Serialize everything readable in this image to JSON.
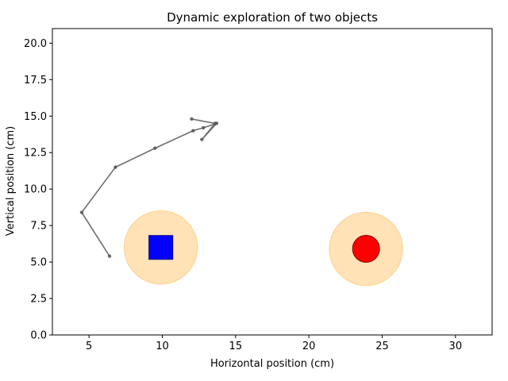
{
  "chart_data": {
    "type": "scatter",
    "title": "Dynamic exploration of two objects",
    "xlabel": "Horizontal position (cm)",
    "ylabel": "Vertical position (cm)",
    "xlim": [
      2.5,
      32.5
    ],
    "ylim": [
      0,
      21
    ],
    "grid": false,
    "x_ticks": [
      5,
      10,
      15,
      20,
      25,
      30
    ],
    "x_tick_labels": [
      "5",
      "10",
      "15",
      "20",
      "25",
      "30"
    ],
    "y_ticks": [
      0,
      2.5,
      5,
      7.5,
      10,
      12.5,
      15,
      17.5,
      20
    ],
    "y_tick_labels": [
      "0.0",
      "2.5",
      "5.0",
      "7.5",
      "10.0",
      "12.5",
      "15.0",
      "17.5",
      "20.0"
    ],
    "trajectory": {
      "x": [
        6.4,
        4.5,
        6.8,
        9.5,
        12.1,
        12.8,
        13.7,
        12.7,
        13.6,
        12.0
      ],
      "y": [
        5.4,
        8.4,
        11.5,
        12.8,
        14.0,
        14.2,
        14.5,
        13.4,
        14.5,
        14.8
      ],
      "color": "#555555"
    },
    "objects": [
      {
        "shape": "square",
        "x": 9.9,
        "y": 6.0,
        "zone_radius": 2.5,
        "color": "#0000ff"
      },
      {
        "shape": "circle",
        "x": 23.9,
        "y": 5.9,
        "zone_radius": 2.5,
        "color": "#ff0000"
      }
    ],
    "zone_color": "#ffe0b2"
  }
}
